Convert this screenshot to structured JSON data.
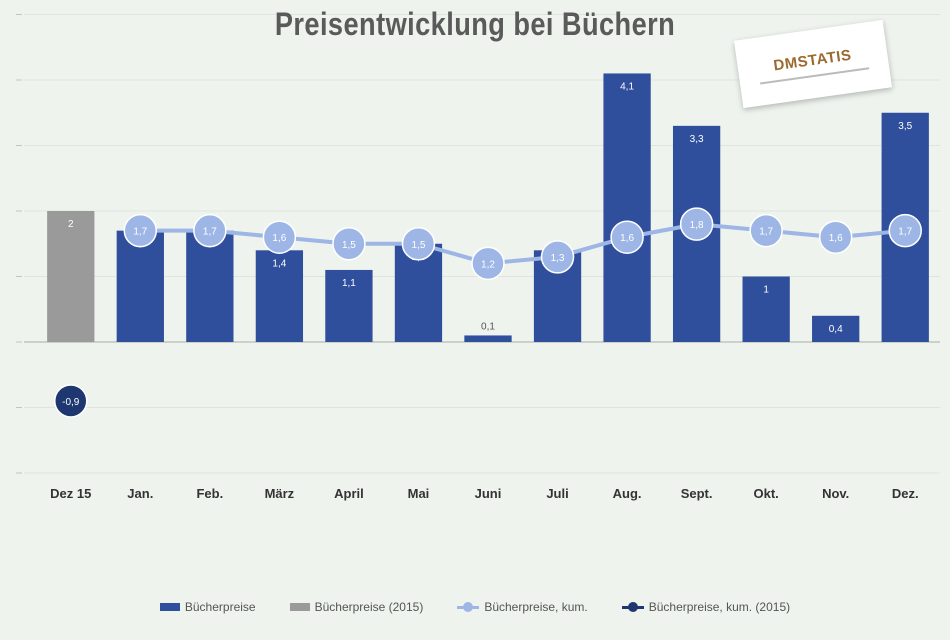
{
  "chart_data": {
    "type": "bar",
    "title": "Preisentwicklung bei Büchern",
    "categories": [
      "Dez 15",
      "Jan.",
      "Feb.",
      "März",
      "April",
      "Mai",
      "Juni",
      "Juli",
      "Aug.",
      "Sept.",
      "Okt.",
      "Nov.",
      "Dez."
    ],
    "ylim": [
      -2,
      5
    ],
    "grid": true,
    "legend_position": "bottom",
    "series": [
      {
        "name": "Bücherpreise",
        "kind": "bar",
        "color": "#2f4e9b",
        "values": [
          null,
          1.7,
          1.7,
          1.4,
          1.1,
          1.5,
          0.1,
          1.4,
          4.1,
          3.3,
          1.0,
          0.4,
          3.5
        ],
        "labels": [
          "",
          "1,7",
          "1,7",
          "1,4",
          "1,1",
          "1,5",
          "0,1",
          "1,4",
          "4,1",
          "3,3",
          "1",
          "0,4",
          "3,5"
        ]
      },
      {
        "name": "Bücherpreise (2015)",
        "kind": "bar",
        "color": "#9a9a9a",
        "values": [
          2.0,
          null,
          null,
          null,
          null,
          null,
          null,
          null,
          null,
          null,
          null,
          null,
          null
        ],
        "labels": [
          "2",
          "",
          "",
          "",
          "",
          "",
          "",
          "",
          "",
          "",
          "",
          "",
          ""
        ]
      },
      {
        "name": "Bücherpreise, kum.",
        "kind": "line",
        "color": "#9db6e6",
        "values": [
          null,
          1.7,
          1.7,
          1.6,
          1.5,
          1.5,
          1.2,
          1.3,
          1.6,
          1.8,
          1.7,
          1.6,
          1.7
        ],
        "labels": [
          "",
          "1,7",
          "1,7",
          "1,6",
          "1,5",
          "1,5",
          "1,2",
          "1,3",
          "1,6",
          "1,8",
          "1,7",
          "1,6",
          "1,7"
        ]
      },
      {
        "name": "Bücherpreise, kum. (2015)",
        "kind": "line",
        "color": "#1e3770",
        "values": [
          -0.9,
          null,
          null,
          null,
          null,
          null,
          null,
          null,
          null,
          null,
          null,
          null,
          null
        ],
        "labels": [
          "-0,9",
          "",
          "",
          "",
          "",
          "",
          "",
          "",
          "",
          "",
          "",
          "",
          ""
        ]
      }
    ]
  },
  "logo": {
    "text": "DMSTATIS"
  },
  "legend": {
    "items": [
      {
        "label": "Bücherpreise"
      },
      {
        "label": "Bücherpreise (2015)"
      },
      {
        "label": "Bücherpreise, kum."
      },
      {
        "label": "Bücherpreise, kum. (2015)"
      }
    ]
  }
}
